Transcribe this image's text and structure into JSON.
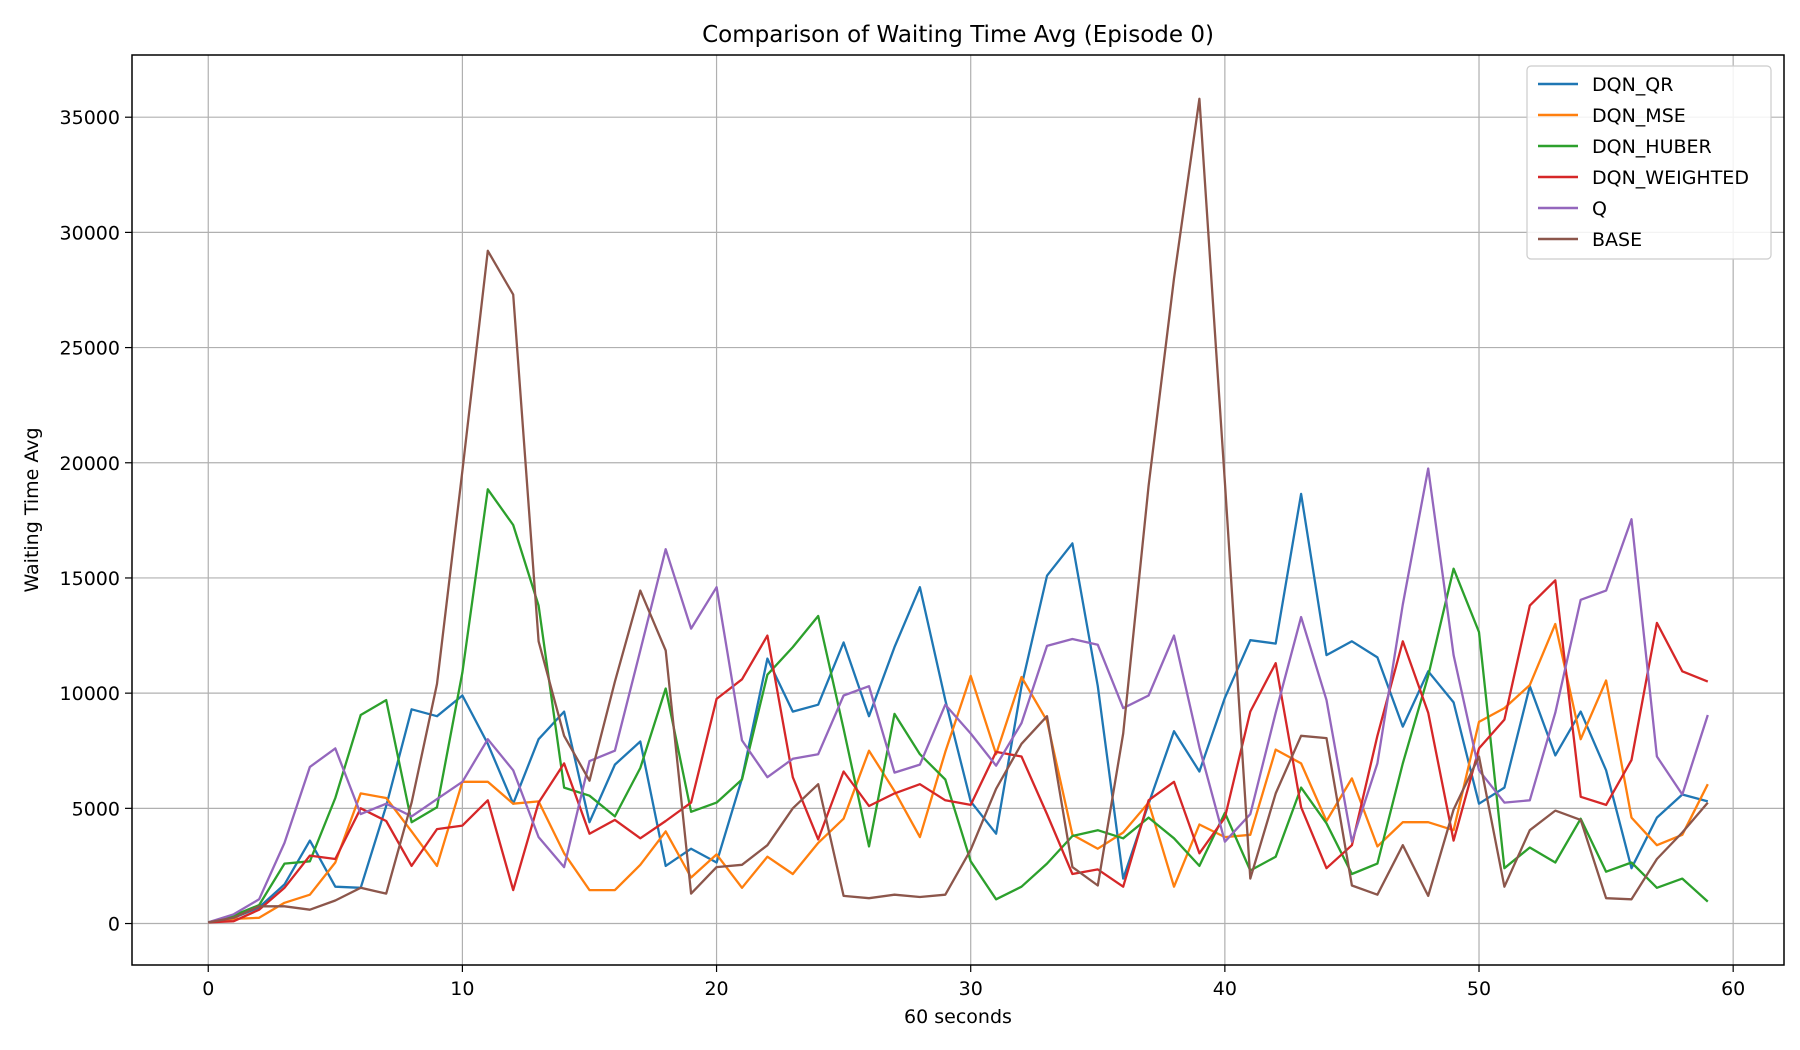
{
  "chart_data": {
    "type": "line",
    "title": "Comparison of Waiting Time Avg (Episode 0)",
    "xlabel": "60 seconds",
    "ylabel": "Waiting Time Avg",
    "xlim": [
      -3,
      62
    ],
    "ylim": [
      -1800,
      37700
    ],
    "xticks": [
      0,
      10,
      20,
      30,
      40,
      50,
      60
    ],
    "yticks": [
      0,
      5000,
      10000,
      15000,
      20000,
      25000,
      30000,
      35000
    ],
    "grid": true,
    "legend_position": "top-right",
    "x": [
      0,
      1,
      2,
      3,
      4,
      5,
      6,
      7,
      8,
      9,
      10,
      11,
      12,
      13,
      14,
      15,
      16,
      17,
      18,
      19,
      20,
      21,
      22,
      23,
      24,
      25,
      26,
      27,
      28,
      29,
      30,
      31,
      32,
      33,
      34,
      35,
      36,
      37,
      38,
      39,
      40,
      41,
      42,
      43,
      44,
      45,
      46,
      47,
      48,
      49,
      50,
      51,
      52,
      53,
      54,
      55,
      56,
      57,
      58,
      59
    ],
    "series": [
      {
        "name": "DQN_QR",
        "color": "#1f77b4",
        "values": [
          50,
          250,
          700,
          1700,
          3600,
          1600,
          1550,
          5100,
          9300,
          9000,
          9900,
          7800,
          5200,
          8000,
          9200,
          4400,
          6900,
          7900,
          2500,
          3250,
          2650,
          6300,
          11500,
          9200,
          9500,
          12200,
          9000,
          12000,
          14600,
          9700,
          5300,
          3900,
          10300,
          15100,
          16500,
          10300,
          1950,
          5200,
          8350,
          6600,
          9800,
          12300,
          12150,
          18650,
          11650,
          12250,
          11550,
          8550,
          10950,
          9600,
          5200,
          5900,
          10300,
          7300,
          9200,
          6650,
          2400,
          4600,
          5600,
          5300
        ]
      },
      {
        "name": "DQN_MSE",
        "color": "#ff7f0e",
        "values": [
          50,
          200,
          250,
          900,
          1250,
          2650,
          5650,
          5450,
          4000,
          2500,
          6150,
          6150,
          5200,
          5300,
          3050,
          1450,
          1450,
          2550,
          4000,
          2000,
          3000,
          1550,
          2900,
          2150,
          3500,
          4550,
          7500,
          5750,
          3750,
          7450,
          10750,
          7350,
          10700,
          8800,
          3850,
          3250,
          3950,
          5250,
          1600,
          4300,
          3750,
          3850,
          7550,
          6950,
          4450,
          6300,
          3350,
          4400,
          4400,
          4050,
          8750,
          9350,
          10350,
          13000,
          8000,
          10550,
          4600,
          3400,
          3850,
          6050
        ]
      },
      {
        "name": "DQN_HUBER",
        "color": "#2ca02c",
        "values": [
          50,
          350,
          800,
          2600,
          2700,
          5450,
          9050,
          9700,
          4400,
          5050,
          10900,
          18850,
          17300,
          13800,
          5900,
          5550,
          4650,
          6750,
          10200,
          4850,
          5250,
          6250,
          10800,
          12000,
          13350,
          8450,
          3350,
          9100,
          7350,
          6250,
          2700,
          1050,
          1600,
          2600,
          3800,
          4050,
          3700,
          4600,
          3700,
          2500,
          4800,
          2300,
          2900,
          5900,
          4350,
          2150,
          2600,
          6950,
          10750,
          15400,
          12650,
          2400,
          3300,
          2650,
          4550,
          2250,
          2650,
          1550,
          1950,
          950
        ]
      },
      {
        "name": "DQN_WEIGHTED",
        "color": "#d62728",
        "values": [
          50,
          100,
          600,
          1550,
          2950,
          2800,
          5000,
          4450,
          2500,
          4100,
          4250,
          5350,
          1450,
          5250,
          6950,
          3900,
          4500,
          3700,
          4450,
          5250,
          9750,
          10600,
          12500,
          6350,
          3650,
          6600,
          5100,
          5650,
          6050,
          5350,
          5150,
          7450,
          7250,
          4750,
          2150,
          2350,
          1600,
          5350,
          6150,
          3050,
          4600,
          9200,
          11300,
          5050,
          2400,
          3400,
          8150,
          12250,
          9150,
          3600,
          7600,
          8850,
          13800,
          14900,
          5500,
          5150,
          7100,
          13050,
          10950,
          10500
        ]
      },
      {
        "name": "Q",
        "color": "#9467bd",
        "values": [
          50,
          400,
          1050,
          3500,
          6800,
          7600,
          4750,
          5200,
          4650,
          5400,
          6150,
          8000,
          6650,
          3750,
          2450,
          7050,
          7500,
          11850,
          16250,
          12800,
          14600,
          7950,
          6350,
          7150,
          7350,
          9900,
          10300,
          6550,
          6900,
          9500,
          8250,
          6850,
          8700,
          12050,
          12350,
          12100,
          9350,
          9900,
          12500,
          7650,
          3550,
          4750,
          9150,
          13300,
          9700,
          3550,
          6950,
          13850,
          19750,
          11650,
          6650,
          5250,
          5350,
          9150,
          14050,
          14450,
          17550,
          7250,
          5600,
          9050
        ]
      },
      {
        "name": "BASE",
        "color": "#8c564b",
        "values": [
          50,
          250,
          750,
          750,
          600,
          1000,
          1550,
          1300,
          5250,
          10400,
          19650,
          29200,
          27300,
          12250,
          8150,
          6200,
          10500,
          14450,
          11850,
          1300,
          2450,
          2550,
          3400,
          5000,
          6050,
          1200,
          1100,
          1250,
          1150,
          1250,
          3200,
          5850,
          7800,
          9000,
          2450,
          1650,
          8250,
          19000,
          28000,
          35800,
          19150,
          1950,
          5650,
          8150,
          8050,
          1650,
          1250,
          3400,
          1200,
          4950,
          7250,
          1600,
          4050,
          4900,
          4500,
          1100,
          1050,
          2800,
          3950,
          5250
        ]
      }
    ]
  }
}
